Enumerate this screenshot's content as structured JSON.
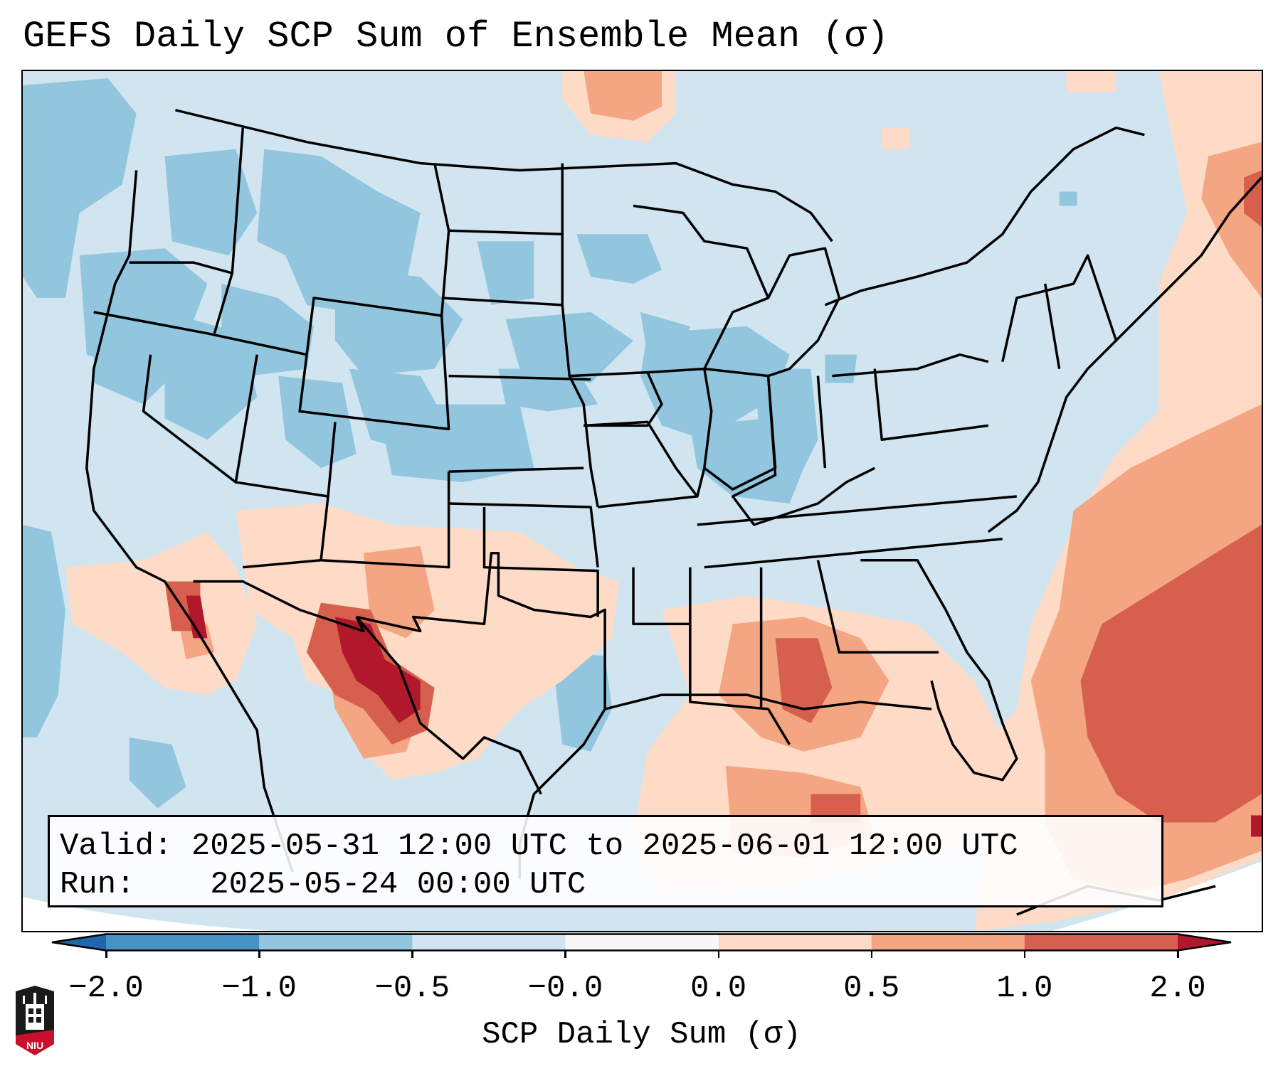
{
  "title": "GEFS Daily SCP Sum of Ensemble Mean (σ)",
  "info_box": {
    "valid_label": "Valid:",
    "valid_value": "2025-05-31 12:00 UTC to 2025-06-01 12:00 UTC",
    "run_label": "Run:",
    "run_value": "2025-05-24 00:00 UTC"
  },
  "colorbar": {
    "label": "SCP Daily Sum (σ)",
    "ticks": [
      "−2.0",
      "−1.0",
      "−0.5",
      "−0.0",
      "0.0",
      "0.5",
      "1.0",
      "2.0"
    ],
    "colors": {
      "under": "#2166ac",
      "b_m2_m1": "#4393c3",
      "b_m1_m05": "#92c5de",
      "b_m05_0": "#d1e5f0",
      "b_0": "#f7f7f7",
      "b_0_05": "#fddbc7",
      "b_05_1": "#f4a582",
      "b_1_2": "#d6604d",
      "over": "#b2182b"
    },
    "extend": "both"
  },
  "logo": {
    "text": "NIU"
  },
  "chart_data": {
    "type": "heatmap",
    "title": "GEFS Daily SCP Sum of Ensemble Mean (σ)",
    "colorbar_label": "SCP Daily Sum (σ)",
    "levels": [
      -2.0,
      -1.0,
      -0.5,
      -0.0,
      0.0,
      0.5,
      1.0,
      2.0
    ],
    "region": "Contiguous United States",
    "highlights": [
      {
        "area": "Southeast Arizona / SW New Mexico / N Mexico",
        "value_range": ">2.0"
      },
      {
        "area": "Lower Mississippi Valley (MS/LA)",
        "value_range": "1.0 to 2.0"
      },
      {
        "area": "Western Atlantic off Southeast coast",
        "value_range": "1.0 to 2.0"
      },
      {
        "area": "Central & Northern Plains / Great Basin / Northwest",
        "value_range": "-1.0 to -0.5"
      },
      {
        "area": "Eastern US interior / Great Lakes",
        "value_range": "-0.5 to 0"
      }
    ]
  }
}
